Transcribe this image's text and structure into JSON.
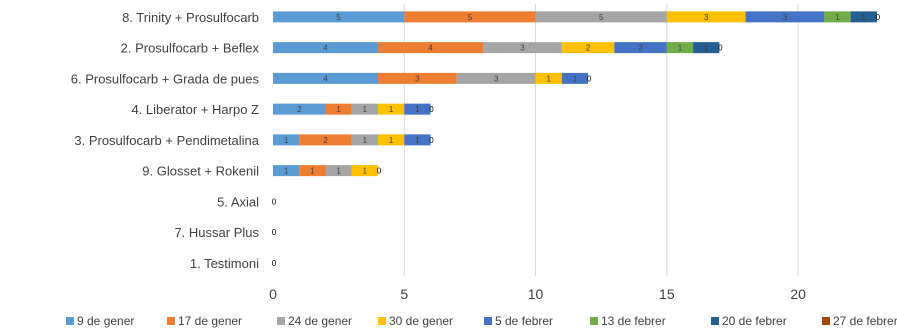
{
  "chart_data": {
    "type": "bar",
    "orientation": "horizontal",
    "stacked": true,
    "title": "",
    "xlabel": "",
    "ylabel": "",
    "xlim": [
      0,
      23.5
    ],
    "xticks": [
      0,
      5,
      10,
      15,
      20
    ],
    "grid": true,
    "legend_position": "bottom",
    "categories": [
      "8. Trinity + Prosulfocarb",
      "2. Prosulfocarb + Beflex",
      "6. Prosulfocarb + Grada de pues",
      "4. Liberator + Harpo Z",
      "3. Prosulfocarb + Pendimetalina",
      "9. Glosset + Rokenil",
      "5. Axial",
      "7. Hussar Plus",
      "1. Testimoni"
    ],
    "series": [
      {
        "name": "9 de gener",
        "color": "#5b9bd5",
        "values": [
          5,
          4,
          4,
          2,
          1,
          1,
          0,
          0,
          0
        ]
      },
      {
        "name": "17 de gener",
        "color": "#ed7d31",
        "values": [
          5,
          4,
          3,
          1,
          2,
          1,
          0,
          0,
          0
        ]
      },
      {
        "name": "24 de gener",
        "color": "#a5a5a5",
        "values": [
          5,
          3,
          3,
          1,
          1,
          1,
          0,
          0,
          0
        ]
      },
      {
        "name": "30 de gener",
        "color": "#ffc000",
        "values": [
          3,
          2,
          1,
          1,
          1,
          1,
          0,
          0,
          0
        ]
      },
      {
        "name": "5 de febrer",
        "color": "#4472c4",
        "values": [
          3,
          2,
          1,
          1,
          1,
          0,
          0,
          0,
          0
        ]
      },
      {
        "name": "13 de febrer",
        "color": "#70ad47",
        "values": [
          1,
          1,
          0,
          0,
          0,
          0,
          0,
          0,
          0
        ]
      },
      {
        "name": "20 de febrer",
        "color": "#255e91",
        "values": [
          1,
          1,
          0,
          0,
          0,
          0,
          0,
          0,
          0
        ]
      },
      {
        "name": "27 de febrer",
        "color": "#9e480e",
        "values": [
          0,
          0,
          0,
          0,
          0,
          0,
          0,
          0,
          0
        ]
      }
    ]
  }
}
